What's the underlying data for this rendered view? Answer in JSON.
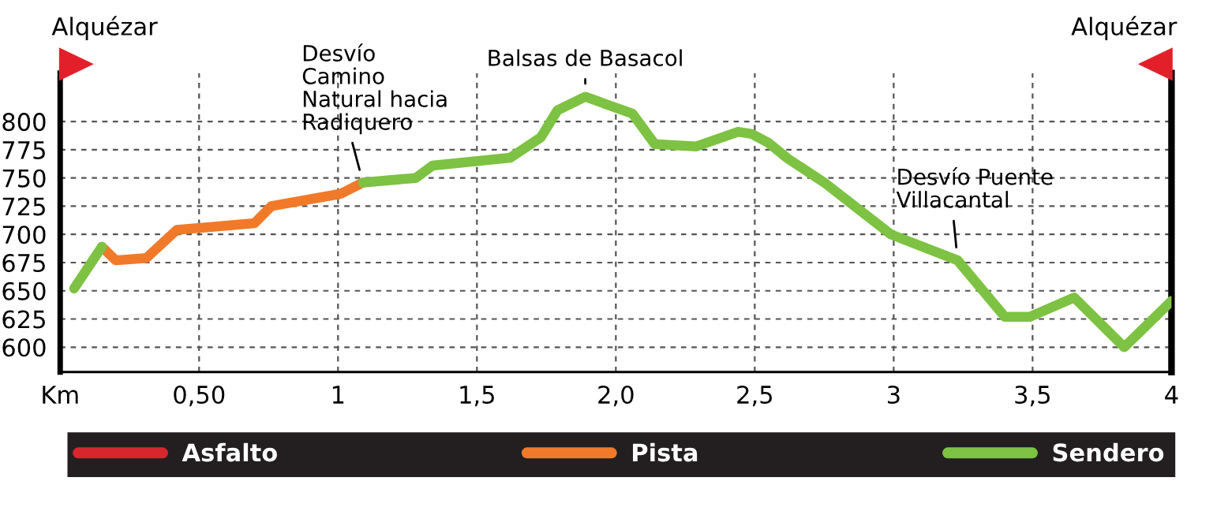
{
  "chart_data": {
    "type": "line",
    "x": [
      0.05,
      0.15,
      0.2,
      0.31,
      0.42,
      0.7,
      0.76,
      1.01,
      1.09,
      1.28,
      1.34,
      1.62,
      1.73,
      1.79,
      1.89,
      2.06,
      2.14,
      2.29,
      2.44,
      2.49,
      2.55,
      2.62,
      2.75,
      2.99,
      3.23,
      3.4,
      3.49,
      3.65,
      3.83,
      4.0
    ],
    "series": [
      {
        "name": "Asfalto",
        "color": "#d7262e",
        "values": [
          null,
          null,
          null,
          null,
          null,
          null,
          null,
          null,
          null,
          null,
          null,
          null,
          null,
          null,
          null,
          null,
          null,
          null,
          null,
          null,
          null,
          null,
          null,
          null,
          null,
          null,
          null,
          null,
          null,
          null
        ]
      },
      {
        "name": "Pista",
        "color": "#f07a2a",
        "values": [
          null,
          689,
          677,
          679,
          704,
          710,
          725,
          736,
          746,
          null,
          null,
          null,
          null,
          null,
          null,
          null,
          null,
          null,
          null,
          null,
          null,
          null,
          null,
          null,
          null,
          null,
          null,
          null,
          null,
          null
        ]
      },
      {
        "name": "Sendero",
        "color": "#7dc242",
        "values": [
          652,
          689,
          null,
          null,
          null,
          null,
          null,
          null,
          746,
          750,
          761,
          768,
          786,
          810,
          822,
          807,
          780,
          778,
          791,
          789,
          781,
          767,
          746,
          700,
          677,
          627,
          627,
          644,
          600,
          641
        ]
      }
    ],
    "xlim": [
      0,
      4
    ],
    "xticks": [
      {
        "value": 0,
        "label": "Km"
      },
      {
        "value": 0.5,
        "label": "0,50"
      },
      1,
      {
        "value": 1.5,
        "label": "1,5"
      },
      {
        "value": 2,
        "label": "2,0"
      },
      {
        "value": 2.5,
        "label": "2,5"
      },
      3,
      {
        "value": 3.5,
        "label": "3,5"
      },
      4
    ],
    "ylim": [
      578,
      843
    ],
    "yticks": [
      600,
      625,
      650,
      675,
      700,
      725,
      750,
      775,
      800
    ],
    "grid": true,
    "legend": "bottom",
    "line_style": "solid",
    "marker": "none",
    "annotations": [
      "Alquézar",
      {
        "text": "Desvío\nCamino\nNatural hacia\nRadiquero",
        "x": 1.09,
        "y": 746
      },
      {
        "text": "Balsas de Basacol",
        "x": 1.89,
        "y": 822
      },
      {
        "text": "Desvío Puente\nVillacantal",
        "x": 3.23,
        "y": 677
      },
      "Alquézar"
    ]
  }
}
